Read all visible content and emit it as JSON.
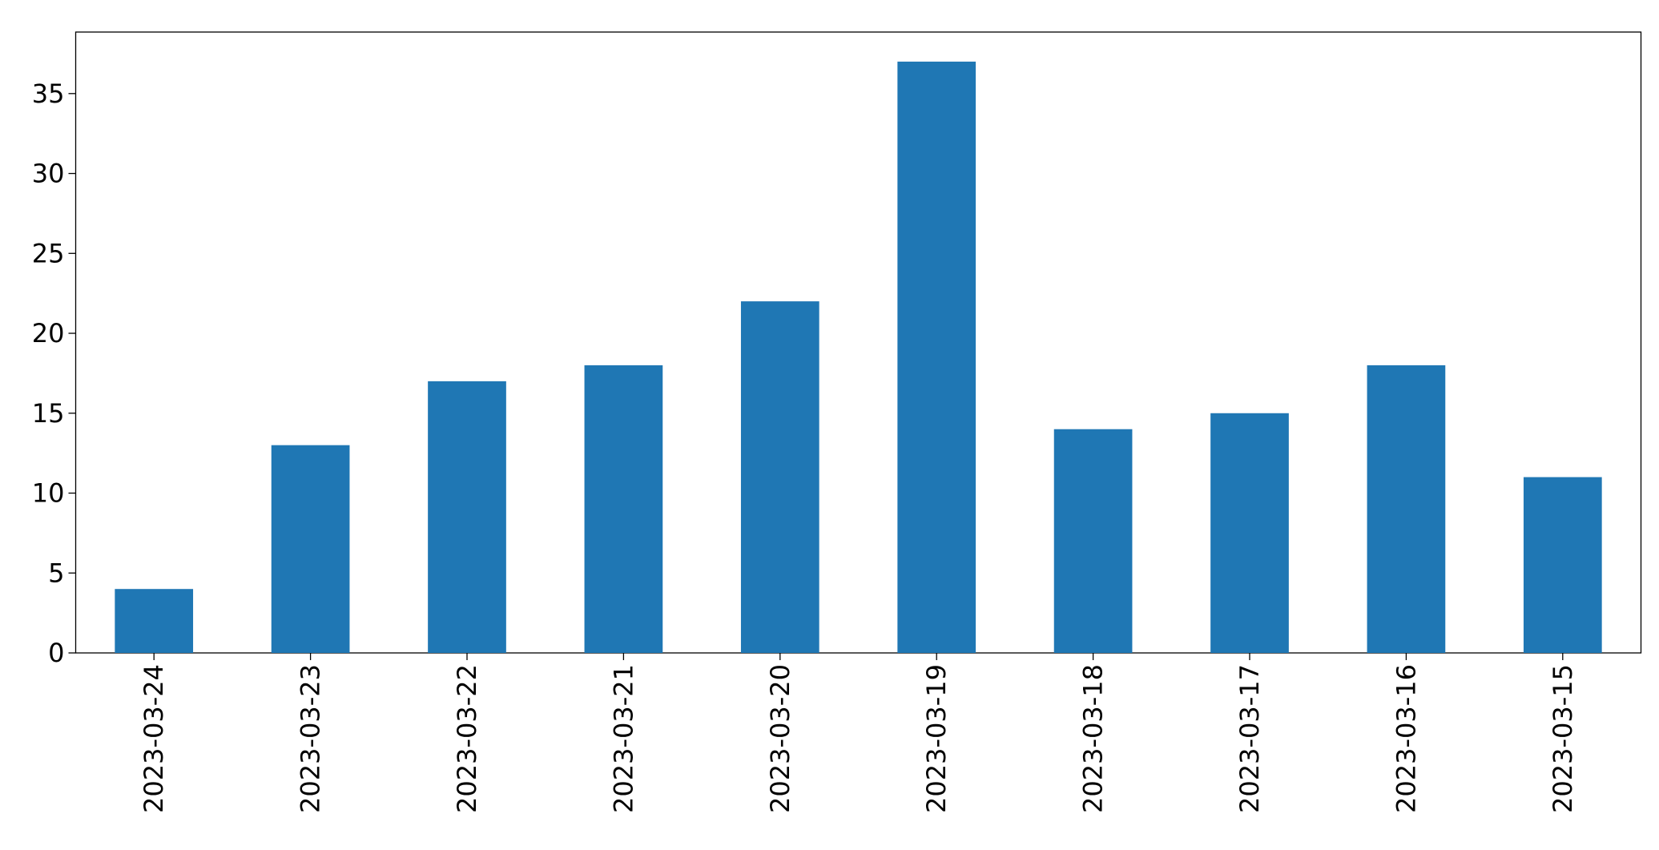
{
  "chart_data": {
    "type": "bar",
    "categories": [
      "2023-03-24",
      "2023-03-23",
      "2023-03-22",
      "2023-03-21",
      "2023-03-20",
      "2023-03-19",
      "2023-03-18",
      "2023-03-17",
      "2023-03-16",
      "2023-03-15"
    ],
    "values": [
      4,
      13,
      17,
      18,
      22,
      37,
      14,
      15,
      18,
      11
    ],
    "color": "#1f77b4",
    "ylim": [
      0,
      38.85
    ],
    "yticks": [
      0,
      5,
      10,
      15,
      20,
      25,
      30,
      35
    ],
    "grid": false
  }
}
